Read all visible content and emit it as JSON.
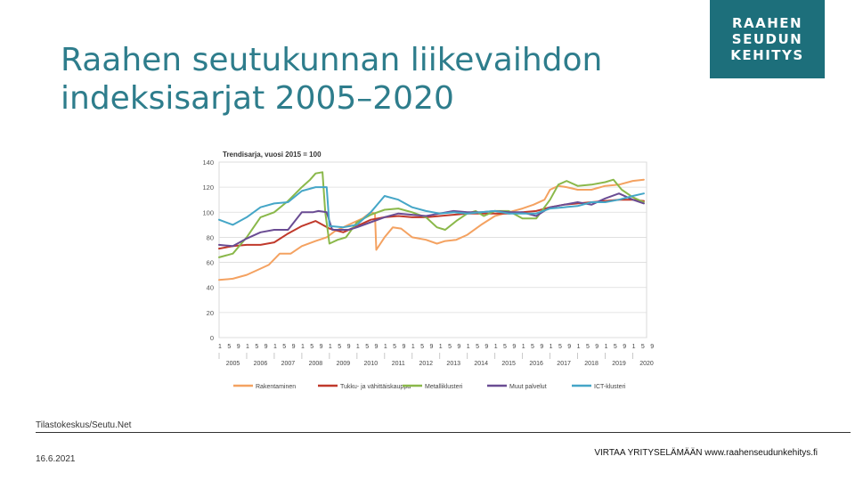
{
  "slide": {
    "title_line1": "Raahen seutukunnan liikevaihdon",
    "title_line2": "indeksisarjat 2005–2020",
    "source": "Tilastokeskus/Seutu.Net",
    "date": "16.6.2021",
    "footer": "VIRTAA YRITYSELÄMÄÄN www.raahenseudunkehitys.fi"
  },
  "logo": {
    "line1": "RAAHEN",
    "line2": "SEUDUN",
    "line3": "KEHITYS",
    "color": "#1d6f7b"
  },
  "chart_data": {
    "type": "line",
    "title": "Trendisarja, vuosi 2015 = 100",
    "ylim": [
      0,
      140
    ],
    "yticks": [
      0,
      20,
      40,
      60,
      80,
      100,
      120,
      140
    ],
    "xlim": [
      2005,
      2020.5
    ],
    "month_ticks": [
      "1",
      "5",
      "9"
    ],
    "years": [
      "2005",
      "2006",
      "2007",
      "2008",
      "2009",
      "2010",
      "2011",
      "2012",
      "2013",
      "2014",
      "2015",
      "2016",
      "2017",
      "2018",
      "2019",
      "2020"
    ],
    "grid": true,
    "legend_position": "bottom",
    "series": [
      {
        "name": "Rakentaminen",
        "color": "#f4a261",
        "x": [
          2005,
          2005.5,
          2006,
          2006.4,
          2006.8,
          2007.2,
          2007.6,
          2008,
          2008.5,
          2008.9,
          2009.2,
          2009.5,
          2009.8,
          2010.2,
          2010.5,
          2010.65,
          2010.7,
          2011,
          2011.3,
          2011.6,
          2012,
          2012.5,
          2012.9,
          2013.2,
          2013.6,
          2014,
          2014.5,
          2015,
          2015.5,
          2016,
          2016.4,
          2016.8,
          2017,
          2017.3,
          2017.6,
          2018,
          2018.5,
          2019,
          2019.5,
          2020,
          2020.4
        ],
        "values": [
          46,
          47,
          50,
          54,
          58,
          67,
          67,
          73,
          77,
          80,
          85,
          88,
          91,
          95,
          100,
          99,
          70,
          80,
          88,
          87,
          80,
          78,
          75,
          77,
          78,
          82,
          90,
          97,
          100,
          103,
          106,
          110,
          118,
          121,
          120,
          118,
          118,
          121,
          122,
          125,
          126
        ]
      },
      {
        "name": "Tukku- ja vähittäiskauppa",
        "color": "#c0392b",
        "x": [
          2005,
          2005.5,
          2006,
          2006.5,
          2007,
          2007.5,
          2008,
          2008.5,
          2009,
          2009.5,
          2010,
          2010.5,
          2011,
          2011.5,
          2012,
          2012.5,
          2013,
          2013.5,
          2014,
          2014.5,
          2015,
          2015.5,
          2016,
          2016.5,
          2017,
          2017.5,
          2018,
          2018.5,
          2019,
          2019.5,
          2020,
          2020.4
        ],
        "values": [
          71,
          73,
          74,
          74,
          76,
          83,
          89,
          93,
          87,
          84,
          89,
          94,
          96,
          97,
          96,
          96,
          97,
          98,
          99,
          99,
          99,
          99,
          100,
          101,
          104,
          106,
          107,
          108,
          109,
          110,
          110,
          109
        ]
      },
      {
        "name": "Metalliklusteri",
        "color": "#8ab84a",
        "x": [
          2005,
          2005.5,
          2006,
          2006.5,
          2007,
          2007.5,
          2008,
          2008.3,
          2008.5,
          2008.75,
          2008.85,
          2009,
          2009.3,
          2009.6,
          2010,
          2010.5,
          2011,
          2011.5,
          2012,
          2012.5,
          2012.9,
          2013.2,
          2013.6,
          2014,
          2014.3,
          2014.6,
          2015,
          2015.5,
          2016,
          2016.5,
          2017,
          2017.3,
          2017.6,
          2018,
          2018.5,
          2019,
          2019.3,
          2019.6,
          2020,
          2020.4
        ],
        "values": [
          64,
          67,
          80,
          96,
          100,
          109,
          120,
          126,
          131,
          132,
          100,
          75,
          78,
          80,
          92,
          98,
          102,
          103,
          100,
          96,
          88,
          86,
          93,
          99,
          101,
          97,
          101,
          101,
          95,
          95,
          110,
          122,
          125,
          121,
          122,
          124,
          126,
          118,
          112,
          108
        ]
      },
      {
        "name": "Muut palvelut",
        "color": "#6a4c93",
        "x": [
          2005,
          2005.5,
          2006,
          2006.5,
          2007,
          2007.5,
          2008,
          2008.4,
          2008.6,
          2008.9,
          2009.1,
          2009.4,
          2009.7,
          2010,
          2010.5,
          2011,
          2011.5,
          2012,
          2012.5,
          2013,
          2013.5,
          2014,
          2014.5,
          2015,
          2015.5,
          2016,
          2016.5,
          2017,
          2017.5,
          2018,
          2018.5,
          2019,
          2019.5,
          2020,
          2020.4
        ],
        "values": [
          74,
          73,
          79,
          84,
          86,
          86,
          100,
          100,
          101,
          100,
          86,
          86,
          86,
          88,
          92,
          96,
          99,
          98,
          97,
          99,
          101,
          100,
          100,
          101,
          100,
          100,
          97,
          104,
          106,
          108,
          106,
          111,
          115,
          110,
          107
        ]
      },
      {
        "name": "ICT-klusteri",
        "color": "#45a6c7",
        "x": [
          2005,
          2005.5,
          2006,
          2006.5,
          2007,
          2007.5,
          2008,
          2008.5,
          2008.9,
          2009,
          2009.5,
          2010,
          2010.5,
          2011,
          2011.5,
          2012,
          2012.5,
          2013,
          2013.5,
          2014,
          2014.5,
          2015,
          2015.5,
          2016,
          2016.5,
          2017,
          2017.5,
          2018,
          2018.5,
          2019,
          2019.5,
          2020,
          2020.4
        ],
        "values": [
          94,
          90,
          96,
          104,
          107,
          108,
          117,
          120,
          120,
          89,
          88,
          90,
          100,
          113,
          110,
          104,
          101,
          99,
          100,
          99,
          100,
          101,
          99,
          99,
          99,
          103,
          104,
          105,
          108,
          108,
          110,
          113,
          115
        ]
      }
    ]
  }
}
